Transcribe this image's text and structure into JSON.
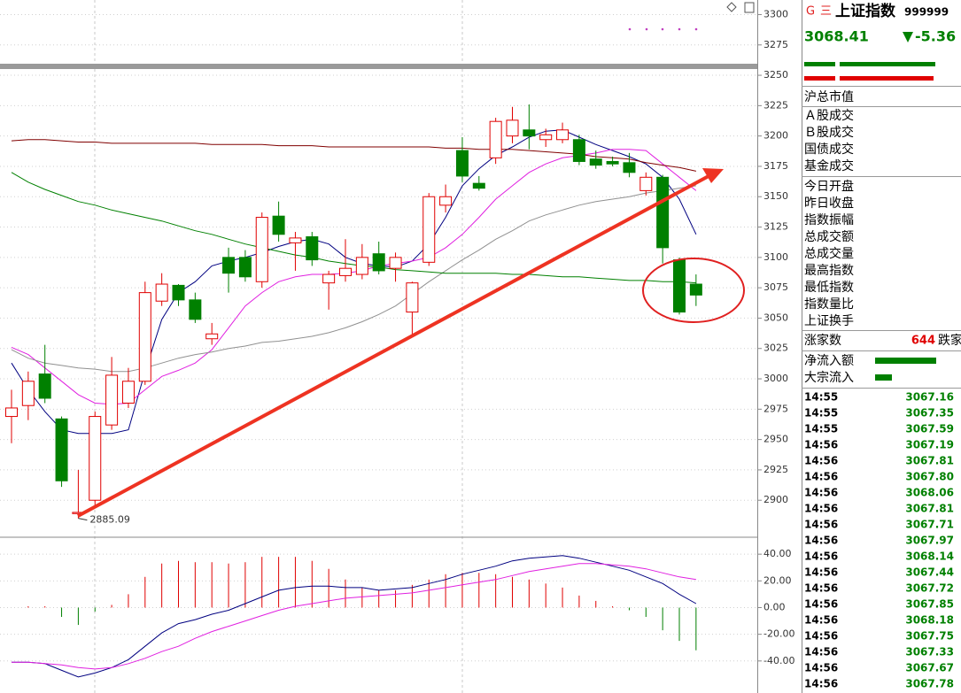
{
  "chart_data": [
    {
      "type": "candlestick",
      "up_color": "#e00000",
      "down_color": "#008000",
      "open": [
        2969,
        2978,
        3004,
        2967,
        2889,
        2900,
        2962,
        2980,
        2998,
        3064,
        3077,
        3065,
        3033,
        3100,
        3100,
        3080,
        3134,
        3112,
        3117,
        3079,
        3085,
        3086,
        3103,
        3091,
        3055,
        3096,
        3143,
        3188,
        3161,
        3182,
        3200,
        3205,
        3197,
        3197,
        3197,
        3181,
        3179,
        3178,
        3155,
        3166,
        3098,
        3078
      ],
      "high": [
        2991,
        3006,
        3028,
        2969,
        2925,
        2973,
        3018,
        3009,
        3080,
        3087,
        3078,
        3071,
        3046,
        3108,
        3106,
        3137,
        3146,
        3121,
        3121,
        3089,
        3115,
        3111,
        3113,
        3104,
        3080,
        3153,
        3160,
        3199,
        3167,
        3215,
        3224,
        3226,
        3206,
        3211,
        3201,
        3188,
        3183,
        3186,
        3170,
        3168,
        3100,
        3086
      ],
      "low": [
        2947,
        2966,
        2980,
        2911,
        2885.09,
        2896,
        2958,
        2976,
        2995,
        3060,
        3060,
        3046,
        3028,
        3071,
        3080,
        3075,
        3113,
        3089,
        3093,
        3057,
        3080,
        3082,
        3086,
        3080,
        3035,
        3093,
        3137,
        3162,
        3155,
        3177,
        3194,
        3189,
        3191,
        3194,
        3176,
        3173,
        3175,
        3166,
        3151,
        3095,
        3053,
        3060
      ],
      "close": [
        2976,
        2998,
        2984,
        2916,
        2890,
        2969,
        3003,
        2998,
        3071,
        3078,
        3065,
        3049,
        3037,
        3087,
        3084,
        3133,
        3119,
        3116,
        3098,
        3086,
        3091,
        3100,
        3089,
        3100,
        3079,
        3150,
        3150,
        3167,
        3157,
        3212,
        3213,
        3200,
        3201,
        3205,
        3179,
        3176,
        3177,
        3170,
        3166,
        3108,
        3055,
        3069
      ],
      "overlays": [
        {
          "color": "#000080",
          "values": [
            3013,
            2991,
            2973,
            2958,
            2955,
            2955,
            2955,
            2958,
            3006,
            3049,
            3071,
            3080,
            3093,
            3097,
            3100,
            3104,
            3109,
            3113,
            3115,
            3111,
            3100,
            3095,
            3093,
            3092,
            3097,
            3111,
            3133,
            3159,
            3173,
            3184,
            3191,
            3199,
            3204,
            3205,
            3199,
            3193,
            3188,
            3183,
            3177,
            3166,
            3148,
            3119
          ]
        },
        {
          "color": "#e020e0",
          "values": [
            3026,
            3020,
            3009,
            2998,
            2987,
            2980,
            2979,
            2980,
            2991,
            3002,
            3007,
            3013,
            3024,
            3042,
            3060,
            3071,
            3080,
            3084,
            3086,
            3086,
            3087,
            3089,
            3093,
            3095,
            3097,
            3100,
            3108,
            3119,
            3133,
            3148,
            3159,
            3170,
            3177,
            3182,
            3184,
            3186,
            3189,
            3189,
            3188,
            3177,
            3166,
            3155
          ]
        },
        {
          "color": "#909090",
          "values": [
            3024,
            3017,
            3013,
            3011,
            3009,
            3008,
            3006,
            3006,
            3009,
            3013,
            3017,
            3020,
            3022,
            3025,
            3027,
            3030,
            3031,
            3033,
            3035,
            3038,
            3042,
            3047,
            3053,
            3060,
            3070,
            3080,
            3089,
            3098,
            3106,
            3115,
            3122,
            3130,
            3135,
            3139,
            3143,
            3146,
            3148,
            3150,
            3153,
            3155,
            3157,
            3159
          ]
        },
        {
          "color": "#008000",
          "values": [
            3170,
            3162,
            3156,
            3151,
            3146,
            3143,
            3139,
            3136,
            3133,
            3130,
            3126,
            3122,
            3119,
            3115,
            3111,
            3108,
            3105,
            3102,
            3100,
            3097,
            3095,
            3093,
            3092,
            3090,
            3089,
            3088,
            3087,
            3087,
            3087,
            3087,
            3086,
            3086,
            3085,
            3084,
            3084,
            3083,
            3082,
            3081,
            3081,
            3080,
            3080,
            3079
          ]
        },
        {
          "color": "#800000",
          "values": [
            3196,
            3197,
            3197,
            3196,
            3195,
            3195,
            3194,
            3194,
            3194,
            3194,
            3194,
            3194,
            3193,
            3193,
            3193,
            3193,
            3192,
            3192,
            3192,
            3191,
            3191,
            3191,
            3191,
            3191,
            3191,
            3191,
            3190,
            3190,
            3189,
            3189,
            3189,
            3188,
            3187,
            3186,
            3185,
            3183,
            3182,
            3181,
            3178,
            3176,
            3174,
            3171
          ]
        }
      ],
      "annotations": [
        {
          "text": "2885.09"
        }
      ],
      "ylim": [
        2871,
        3312
      ],
      "yticks": [
        2900,
        2925,
        2950,
        2975,
        3000,
        3025,
        3050,
        3075,
        3100,
        3125,
        3150,
        3175,
        3200,
        3225,
        3250,
        3275,
        3300
      ],
      "grid": true
    },
    {
      "type": "macd",
      "up_color": "#e00000",
      "down_color": "#008000",
      "values": [
        0,
        1,
        1,
        -7,
        -13,
        -3,
        2,
        10,
        23,
        33,
        35,
        34,
        34,
        33,
        34,
        38,
        38,
        38,
        35,
        29,
        21,
        15,
        13,
        13,
        17,
        21,
        25,
        26,
        26,
        25,
        23,
        21,
        18,
        15,
        9,
        5,
        1,
        -2,
        -7,
        -17,
        -25,
        -32
      ],
      "lines": [
        {
          "color": "#000080",
          "values": [
            -41,
            -41,
            -42,
            -47,
            -52,
            -49,
            -45,
            -39,
            -29,
            -19,
            -12,
            -9,
            -5,
            -2,
            3,
            8,
            13,
            15,
            16,
            16,
            15,
            15,
            13,
            14,
            15,
            18,
            21,
            25,
            28,
            31,
            35,
            37,
            38,
            39,
            37,
            34,
            31,
            28,
            23,
            18,
            10,
            3
          ]
        },
        {
          "color": "#e020e0",
          "values": [
            -41,
            -41,
            -42,
            -43,
            -45,
            -46,
            -45,
            -42,
            -38,
            -33,
            -29,
            -23,
            -18,
            -14,
            -10,
            -6,
            -2,
            1,
            3,
            5,
            7,
            8,
            9,
            10,
            11,
            13,
            15,
            17,
            19,
            21,
            24,
            27,
            29,
            31,
            33,
            33,
            32,
            31,
            29,
            26,
            23,
            21
          ]
        }
      ],
      "ylim": [
        -64,
        52.7
      ],
      "yticks": [
        {
          "value": 40,
          "label": "40.00"
        },
        {
          "value": 20,
          "label": "20.00"
        },
        {
          "value": 0,
          "label": "0.00"
        },
        {
          "value": -20,
          "label": "-20.00"
        },
        {
          "value": -40,
          "label": "-40.00"
        }
      ],
      "grid": true
    }
  ],
  "quote_panel": {
    "badges": [
      "G",
      "三"
    ],
    "name": "上证指数",
    "code": "999999",
    "price": "3068.41",
    "change": "-5.36",
    "stats_groups": [
      [
        "沪总市值"
      ],
      [
        "Ａ股成交",
        "Ｂ股成交",
        "国债成交",
        "基金成交"
      ],
      [
        "今日开盘",
        "昨日收盘",
        "指数振幅",
        "总成交额",
        "总成交量",
        "最高指数",
        "最低指数",
        "指数量比",
        "上证换手"
      ]
    ],
    "advance_label": "涨家数",
    "advance_count": "644",
    "decline_label": "跌家数",
    "flow_labels": [
      "净流入额",
      "大宗流入"
    ],
    "ticks": [
      [
        "14:55",
        "3067.16"
      ],
      [
        "14:55",
        "3067.35"
      ],
      [
        "14:55",
        "3067.59"
      ],
      [
        "14:56",
        "3067.19"
      ],
      [
        "14:56",
        "3067.81"
      ],
      [
        "14:56",
        "3067.80"
      ],
      [
        "14:56",
        "3068.06"
      ],
      [
        "14:56",
        "3067.81"
      ],
      [
        "14:56",
        "3067.71"
      ],
      [
        "14:56",
        "3067.97"
      ],
      [
        "14:56",
        "3068.14"
      ],
      [
        "14:56",
        "3067.44"
      ],
      [
        "14:56",
        "3067.72"
      ],
      [
        "14:56",
        "3067.85"
      ],
      [
        "14:56",
        "3068.18"
      ],
      [
        "14:56",
        "3067.75"
      ],
      [
        "14:56",
        "3067.33"
      ],
      [
        "14:56",
        "3067.67"
      ],
      [
        "14:56",
        "3067.78"
      ]
    ]
  }
}
